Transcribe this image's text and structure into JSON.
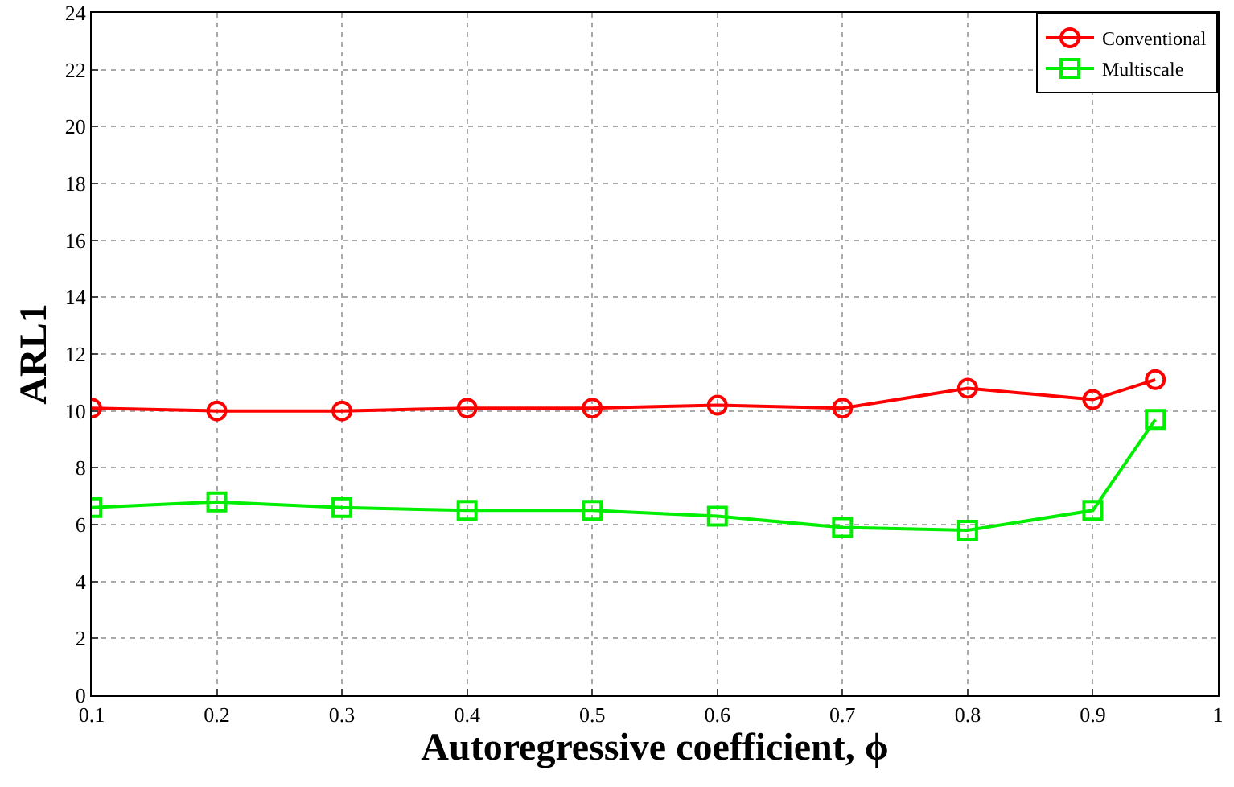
{
  "chart_data": {
    "type": "line",
    "xlabel": "Autoregressive coefficient, ϕ",
    "ylabel": "ARL1",
    "x": [
      0.1,
      0.2,
      0.3,
      0.4,
      0.5,
      0.6,
      0.7,
      0.8,
      0.9,
      0.95
    ],
    "series": [
      {
        "name": "Conventional",
        "color": "#ff0000",
        "marker": "circle",
        "values": [
          10.1,
          10.0,
          10.0,
          10.1,
          10.1,
          10.2,
          10.1,
          10.8,
          10.4,
          11.1
        ]
      },
      {
        "name": "Multiscale",
        "color": "#00ee00",
        "marker": "square",
        "values": [
          6.6,
          6.8,
          6.6,
          6.5,
          6.5,
          6.3,
          5.9,
          5.8,
          6.5,
          9.7
        ]
      }
    ],
    "xlim": [
      0.1,
      1
    ],
    "xticks": [
      0.1,
      0.2,
      0.3,
      0.4,
      0.5,
      0.6,
      0.7,
      0.8,
      0.9,
      1
    ],
    "ylim": [
      0,
      24
    ],
    "yticks": [
      0,
      2,
      4,
      6,
      8,
      10,
      12,
      14,
      16,
      18,
      20,
      22,
      24
    ],
    "grid": true,
    "legend": "top right",
    "line_style": "solid"
  }
}
